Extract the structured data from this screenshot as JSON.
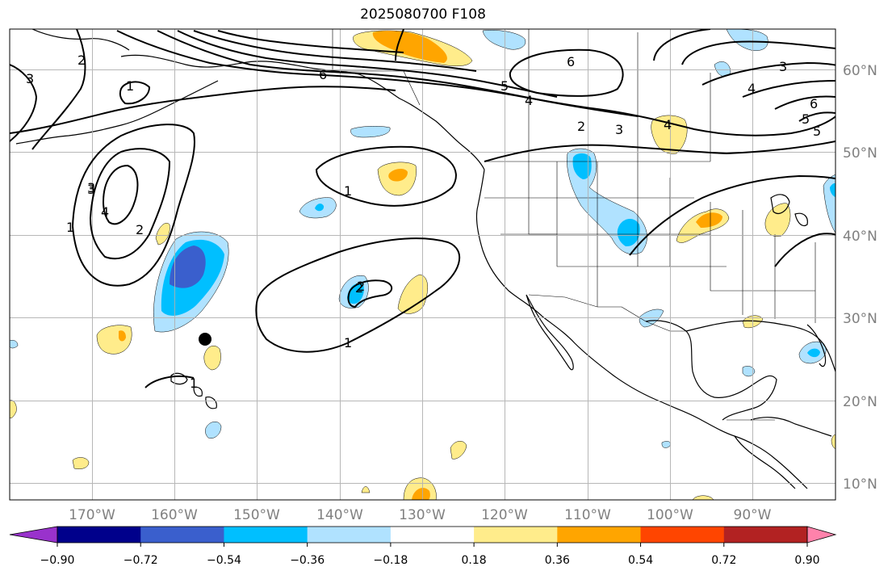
{
  "title": "2025080700 F108",
  "lon_labels": [
    "170°W",
    "160°W",
    "150°W",
    "140°W",
    "130°W",
    "120°W",
    "110°W",
    "100°W",
    "90°W"
  ],
  "lat_labels": [
    "60°N",
    "50°N",
    "40°N",
    "30°N",
    "20°N",
    "10°N"
  ],
  "colorbar": {
    "labels": [
      "−0.90",
      "−0.72",
      "−0.54",
      "−0.36",
      "−0.18",
      "0.18",
      "0.36",
      "0.54",
      "0.72",
      "0.90"
    ],
    "colors": [
      "#9932cc",
      "#00008b",
      "#3a5fcd",
      "#00bfff",
      "#b0e2ff",
      "#ffffff",
      "#ffec8b",
      "#ffa500",
      "#ff4500",
      "#b22222",
      "#ff82ab"
    ]
  },
  "contour_labels": [
    "2",
    "3",
    "1",
    "6",
    "5",
    "4",
    "6",
    "5",
    "4",
    "3",
    "2",
    "3",
    "4",
    "5",
    "6",
    "3",
    "3",
    "4",
    "2",
    "1",
    "1",
    "2",
    "1",
    "2",
    "1"
  ],
  "colors": {
    "grid": "#b0b0b0",
    "coast": "#000000",
    "contour": "#000000",
    "tick_text": "#808080"
  }
}
